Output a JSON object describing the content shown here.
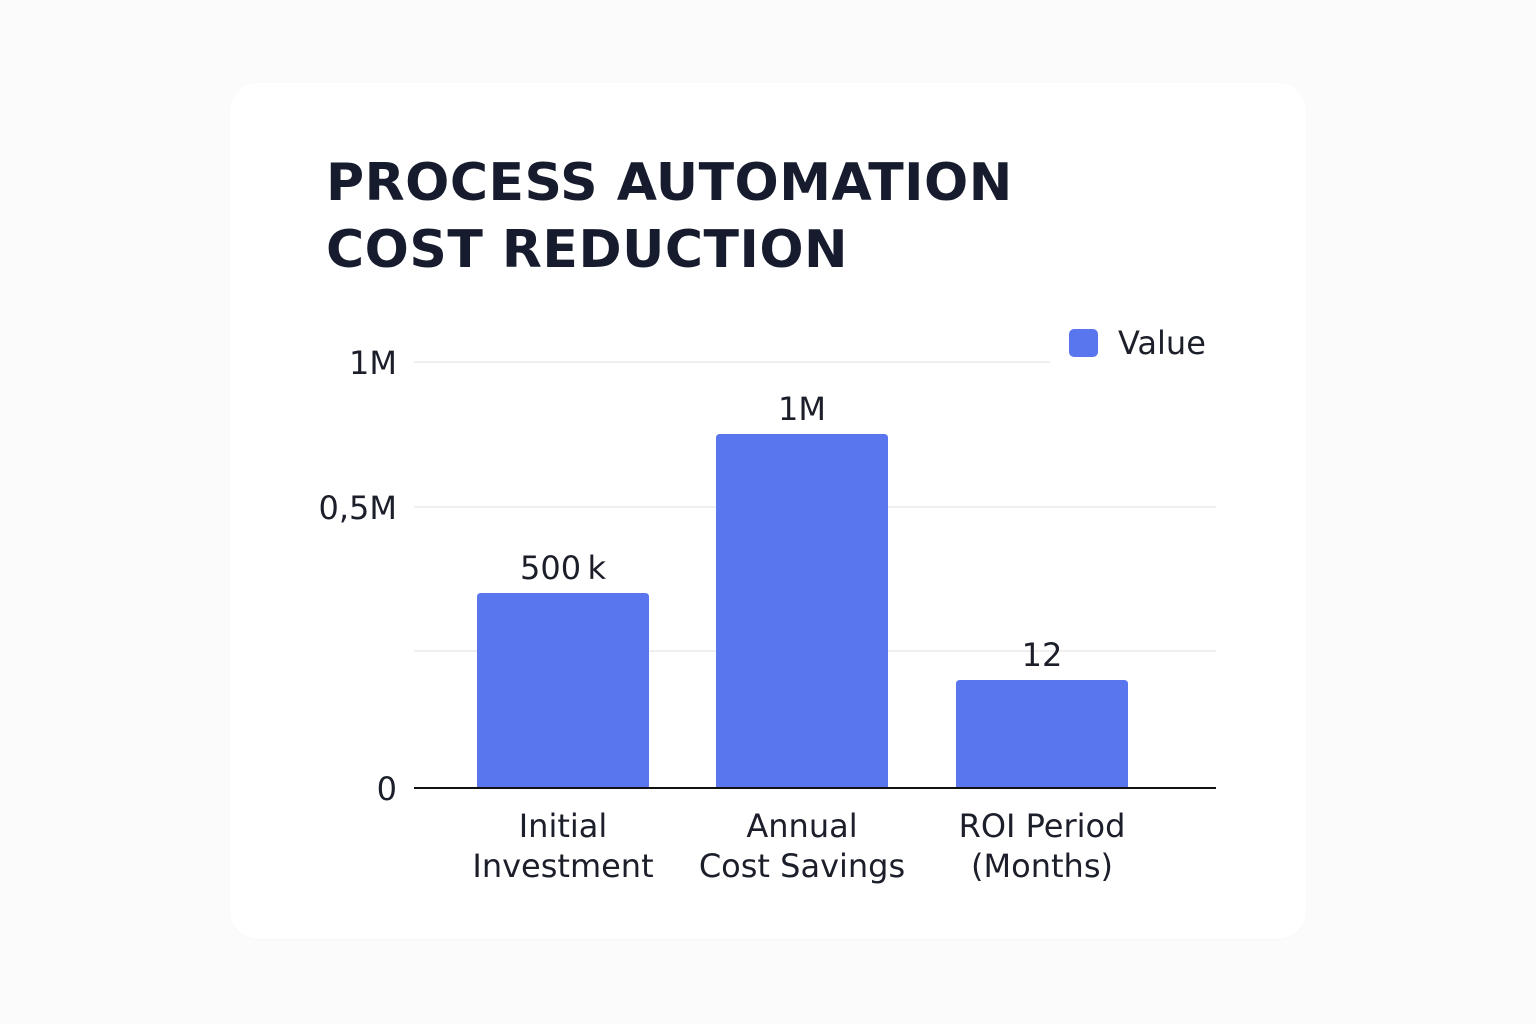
{
  "chart_data": {
    "type": "bar",
    "title_lines": [
      "PROCESS AUTOMATION",
      "COST REDUCTION"
    ],
    "categories": [
      [
        "Initial",
        "Investment"
      ],
      [
        "Annual",
        "Cost Savings"
      ],
      [
        "ROI Period",
        "(Months)"
      ]
    ],
    "series": [
      {
        "name": "Value",
        "values": [
          500000,
          1000000,
          12
        ],
        "data_labels": [
          "500 k",
          "1M",
          "12"
        ]
      }
    ],
    "y_ticks": [
      {
        "value": 0,
        "label": "0"
      },
      {
        "value": 500000,
        "label": "0,5M"
      },
      {
        "value": 1000000,
        "label": "1M"
      }
    ],
    "legend_position": "top-right",
    "grid": true,
    "colors": {
      "bar": "#5a76ee",
      "grid": "#eaeaea",
      "axis": "#111111",
      "text": "#1c1f2a"
    }
  }
}
